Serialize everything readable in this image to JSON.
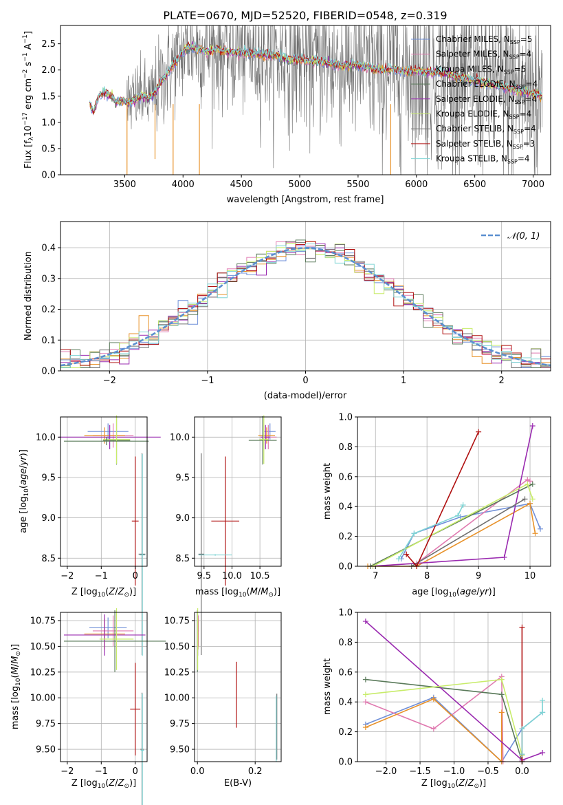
{
  "figure": {
    "title": "PLATE=0670, MJD=52520, FIBERID=0548, z=0.319"
  },
  "colors": {
    "chabrier_miles": "#6f8fd8",
    "salpeter_miles": "#e07ab0",
    "kroupa_miles": "#e8922a",
    "chabrier_elodie": "#5a7a5a",
    "salpeter_elodie": "#9a2ab0",
    "kroupa_elodie": "#c8ec6a",
    "chabrier_stelib": "#707070",
    "salpeter_stelib": "#b01010",
    "kroupa_stelib": "#7fd4d4",
    "gauss": "#5b8fd0",
    "grid": "#b0b0b0"
  },
  "chart_data": [
    {
      "id": "spectrum",
      "type": "line",
      "title": "PLATE=0670, MJD=52520, FIBERID=0548, z=0.319",
      "xlabel": "wavelength [Angstrom, rest frame]",
      "ylabel": "Flux [fλ10⁻¹⁷ erg cm⁻² s⁻¹ A⁻¹]",
      "xlim": [
        2950,
        7150
      ],
      "ylim": [
        0,
        2.85
      ],
      "xticks": [
        3500,
        4000,
        4500,
        5000,
        5500,
        6000,
        6500,
        7000
      ],
      "yticks": [
        0.0,
        0.5,
        1.0,
        1.5,
        2.0,
        2.5
      ],
      "grid": false,
      "legend": "top-right",
      "continuum": {
        "x": [
          3200,
          3230,
          3280,
          3330,
          3380,
          3430,
          3480,
          3530,
          3580,
          3650,
          3700,
          3760,
          3800,
          3850,
          3900,
          3950,
          4000,
          4050,
          4100,
          4150,
          4200,
          4300,
          4400,
          4500,
          4600,
          4700,
          4800,
          4900,
          5000,
          5100,
          5200,
          5300,
          5400,
          5500,
          5600,
          5700,
          5800,
          5900,
          6000,
          6100,
          6200,
          6300,
          6400,
          6500,
          6600,
          6700,
          6800,
          6900,
          7000,
          7080
        ],
        "y": [
          1.37,
          1.2,
          1.5,
          1.58,
          1.5,
          1.4,
          1.42,
          1.36,
          1.43,
          1.52,
          1.45,
          1.55,
          1.72,
          1.9,
          2.05,
          2.2,
          2.35,
          2.45,
          2.43,
          2.4,
          2.35,
          2.4,
          2.35,
          2.35,
          2.3,
          2.3,
          2.28,
          2.2,
          2.2,
          2.18,
          2.15,
          2.1,
          2.1,
          2.1,
          2.05,
          2.0,
          2.02,
          1.98,
          1.98,
          1.95,
          1.95,
          1.9,
          1.85,
          1.8,
          1.75,
          1.7,
          1.65,
          1.6,
          1.55,
          1.5
        ]
      },
      "legend_entries": [
        {
          "label": "Chabrier MILES, N",
          "sub": "SSP",
          "value": "=5",
          "color_key": "chabrier_miles"
        },
        {
          "label": "Salpeter MILES, N",
          "sub": "SSP",
          "value": "=4",
          "color_key": "salpeter_miles"
        },
        {
          "label": "Kroupa MILES, N",
          "sub": "SSP",
          "value": "=5",
          "color_key": "kroupa_miles"
        },
        {
          "label": "Chabrier ELODIE, N",
          "sub": "SSP",
          "value": "=4",
          "color_key": "chabrier_elodie"
        },
        {
          "label": "Salpeter ELODIE, N",
          "sub": "SSP",
          "value": "=4",
          "color_key": "salpeter_elodie"
        },
        {
          "label": "Kroupa ELODIE, N",
          "sub": "SSP",
          "value": "=4",
          "color_key": "kroupa_elodie"
        },
        {
          "label": "Chabrier STELIB, N",
          "sub": "SSP",
          "value": "=4",
          "color_key": "chabrier_stelib"
        },
        {
          "label": "Salpeter STELIB, N",
          "sub": "SSP",
          "value": "=3",
          "color_key": "salpeter_stelib"
        },
        {
          "label": "Kroupa STELIB, N",
          "sub": "SSP",
          "value": "=4",
          "color_key": "kroupa_stelib"
        }
      ]
    },
    {
      "id": "residuals",
      "type": "line",
      "xlabel": "(data-model)/error",
      "ylabel": "Normed distribution",
      "xlim": [
        -2.5,
        2.5
      ],
      "ylim": [
        0,
        0.485
      ],
      "xticks": [
        -2,
        -1,
        0,
        1,
        2
      ],
      "yticks": [
        0.0,
        0.1,
        0.2,
        0.3,
        0.4
      ],
      "grid": true,
      "legend": "top-right",
      "legend_label": "N(0, 1)",
      "bins": {
        "start": -2.5,
        "width": 0.1
      }
    },
    {
      "id": "age-vs-Z",
      "type": "scatter",
      "xlabel": "Z [log10(Z/Z⊙)]",
      "ylabel": "age  [log10(age/yr)]",
      "xlim": [
        -2.2,
        0.35
      ],
      "ylim": [
        8.4,
        10.25
      ],
      "xticks": [
        -2,
        -1,
        0
      ],
      "yticks": [
        8.5,
        9.0,
        9.5,
        10.0
      ],
      "grid": true,
      "points": [
        {
          "x": -0.8,
          "y": 10.07,
          "xerr": 0.6,
          "yerr": 0.1,
          "color_key": "chabrier_miles"
        },
        {
          "x": -0.65,
          "y": 10.02,
          "xerr": 0.6,
          "yerr": 0.15,
          "color_key": "salpeter_miles"
        },
        {
          "x": -0.9,
          "y": 10.02,
          "xerr": 0.6,
          "yerr": 0.1,
          "color_key": "kroupa_miles"
        },
        {
          "x": -0.55,
          "y": 9.96,
          "xerr": 0.4,
          "yerr": 0.3,
          "color_key": "chabrier_elodie"
        },
        {
          "x": -0.75,
          "y": 10.0,
          "xerr": 1.5,
          "yerr": 0.15,
          "color_key": "salpeter_elodie"
        },
        {
          "x": -0.55,
          "y": 9.97,
          "xerr": 0.4,
          "yerr": 0.3,
          "color_key": "kroupa_elodie"
        },
        {
          "x": 0.0,
          "y": 8.96,
          "xerr": 0.1,
          "yerr": 0.8,
          "color_key": "salpeter_stelib"
        },
        {
          "x": 0.2,
          "y": 8.55,
          "xerr": 0.1,
          "yerr": 1.25,
          "color_key": "chabrier_stelib"
        },
        {
          "x": 0.21,
          "y": 8.54,
          "xerr": 0.08,
          "yerr": 1.25,
          "color_key": "kroupa_stelib"
        },
        {
          "x": -0.85,
          "y": 9.95,
          "xerr": 1.25,
          "yerr": 0.05,
          "color_key": "chabrier_elodie"
        }
      ]
    },
    {
      "id": "age-vs-mass",
      "type": "scatter",
      "xlabel": "mass [log10(M/M⊙)]",
      "xlim": [
        9.33,
        10.88
      ],
      "ylim": [
        8.4,
        10.25
      ],
      "xticks": [
        9.5,
        10.0,
        10.5
      ],
      "yticks": [
        8.5,
        9.0,
        9.5,
        10.0
      ],
      "grid": true,
      "points": [
        {
          "x": 10.68,
          "y": 10.07,
          "xerr": 0.1,
          "yerr": 0.1,
          "color_key": "chabrier_miles"
        },
        {
          "x": 10.65,
          "y": 10.0,
          "xerr": 0.15,
          "yerr": 0.15,
          "color_key": "salpeter_miles"
        },
        {
          "x": 10.62,
          "y": 10.02,
          "xerr": 0.15,
          "yerr": 0.1,
          "color_key": "kroupa_miles"
        },
        {
          "x": 10.55,
          "y": 9.96,
          "xerr": 0.25,
          "yerr": 0.3,
          "color_key": "chabrier_elodie"
        },
        {
          "x": 10.6,
          "y": 10.0,
          "xerr": 0.08,
          "yerr": 0.15,
          "color_key": "salpeter_elodie"
        },
        {
          "x": 10.57,
          "y": 9.97,
          "xerr": 0.08,
          "yerr": 0.3,
          "color_key": "kroupa_elodie"
        },
        {
          "x": 9.88,
          "y": 8.96,
          "xerr": 0.25,
          "yerr": 0.8,
          "color_key": "salpeter_stelib"
        },
        {
          "x": 9.45,
          "y": 8.55,
          "xerr": 0.05,
          "yerr": 1.25,
          "color_key": "chabrier_stelib"
        },
        {
          "x": 9.7,
          "y": 8.54,
          "xerr": 0.3,
          "yerr": 0.01,
          "color_key": "kroupa_stelib"
        }
      ]
    },
    {
      "id": "mass-weight-vs-age",
      "type": "line",
      "xlabel": "age  [log10(age/yr)]",
      "ylabel": "mass weight",
      "xlim": [
        6.65,
        10.4
      ],
      "ylim": [
        0,
        1.0
      ],
      "xticks": [
        7,
        8,
        9,
        10
      ],
      "yticks": [
        0.0,
        0.2,
        0.4,
        0.6,
        0.8,
        1.0
      ],
      "grid": true,
      "series": [
        {
          "color_key": "chabrier_miles",
          "x": [
            7.5,
            7.75,
            8.65,
            10.0,
            10.2
          ],
          "y": [
            0.05,
            0.22,
            0.33,
            0.42,
            0.25
          ]
        },
        {
          "color_key": "salpeter_miles",
          "x": [
            6.9,
            7.8,
            9.95,
            10.0
          ],
          "y": [
            0.0,
            0.02,
            0.58,
            0.57
          ]
        },
        {
          "color_key": "kroupa_miles",
          "x": [
            6.85,
            7.8,
            10.0,
            10.1
          ],
          "y": [
            0.0,
            0.0,
            0.42,
            0.22
          ]
        },
        {
          "color_key": "chabrier_elodie",
          "x": [
            6.9,
            10.05
          ],
          "y": [
            0.0,
            0.55
          ]
        },
        {
          "color_key": "salpeter_elodie",
          "x": [
            6.95,
            9.5,
            10.05
          ],
          "y": [
            0.0,
            0.06,
            0.94
          ]
        },
        {
          "color_key": "kroupa_elodie",
          "x": [
            6.95,
            9.95,
            10.05
          ],
          "y": [
            0.0,
            0.55,
            0.45
          ]
        },
        {
          "color_key": "chabrier_stelib",
          "x": [
            7.7,
            9.9
          ],
          "y": [
            0.0,
            0.45
          ]
        },
        {
          "color_key": "salpeter_stelib",
          "x": [
            7.6,
            7.8,
            9.0
          ],
          "y": [
            0.08,
            0.0,
            0.9
          ]
        },
        {
          "color_key": "kroupa_stelib",
          "x": [
            7.45,
            7.75,
            8.6,
            8.7
          ],
          "y": [
            0.05,
            0.22,
            0.34,
            0.41
          ]
        }
      ]
    },
    {
      "id": "mass-vs-Z",
      "type": "scatter",
      "xlabel": "Z [log10(Z/Z⊙)]",
      "ylabel": "mass [log10(M/M⊙)]",
      "xlim": [
        -2.2,
        0.35
      ],
      "ylim": [
        9.38,
        10.83
      ],
      "xticks": [
        -2,
        -1,
        0
      ],
      "yticks": [
        9.5,
        9.75,
        10.0,
        10.25,
        10.5,
        10.75
      ],
      "grid": true,
      "points": [
        {
          "x": -0.8,
          "y": 10.68,
          "xerr": 0.55,
          "yerr": 0.1,
          "color_key": "chabrier_miles"
        },
        {
          "x": -0.65,
          "y": 10.65,
          "xerr": 0.6,
          "yerr": 0.15,
          "color_key": "salpeter_miles"
        },
        {
          "x": -0.9,
          "y": 10.62,
          "xerr": 0.6,
          "yerr": 0.15,
          "color_key": "kroupa_miles"
        },
        {
          "x": -0.6,
          "y": 10.55,
          "xerr": 1.5,
          "yerr": 0.3,
          "color_key": "chabrier_elodie"
        },
        {
          "x": -0.9,
          "y": 10.61,
          "xerr": 1.2,
          "yerr": 0.2,
          "color_key": "salpeter_elodie"
        },
        {
          "x": -0.55,
          "y": 10.57,
          "xerr": 0.5,
          "yerr": 0.3,
          "color_key": "kroupa_elodie"
        },
        {
          "x": 0.0,
          "y": 9.89,
          "xerr": 0.15,
          "yerr": 0.45,
          "color_key": "salpeter_stelib"
        },
        {
          "x": 0.2,
          "y": 9.5,
          "xerr": 0.05,
          "yerr": 0.55,
          "color_key": "chabrier_stelib"
        },
        {
          "x": 0.21,
          "y": 9.49,
          "xerr": 0.05,
          "yerr": 0.55,
          "color_key": "kroupa_stelib"
        }
      ]
    },
    {
      "id": "mass-vs-EBV",
      "type": "scatter",
      "xlabel": "E(B-V)",
      "xlim": [
        -0.01,
        0.29
      ],
      "ylim": [
        9.38,
        10.83
      ],
      "xticks": [
        0.0,
        0.2
      ],
      "yticks": [
        9.5,
        9.75,
        10.0,
        10.25,
        10.5,
        10.75
      ],
      "grid": true,
      "points": [
        {
          "x": 0.002,
          "y": 10.68,
          "xerr": 0.002,
          "yerr": 0.1,
          "color_key": "chabrier_miles"
        },
        {
          "x": 0.003,
          "y": 10.65,
          "xerr": 0.002,
          "yerr": 0.15,
          "color_key": "salpeter_miles"
        },
        {
          "x": 0.002,
          "y": 10.62,
          "xerr": 0.002,
          "yerr": 0.15,
          "color_key": "kroupa_miles"
        },
        {
          "x": 0.0,
          "y": 10.55,
          "xerr": 0.001,
          "yerr": 0.3,
          "color_key": "chabrier_elodie"
        },
        {
          "x": 0.001,
          "y": 10.61,
          "xerr": 0.001,
          "yerr": 0.2,
          "color_key": "salpeter_elodie"
        },
        {
          "x": 0.001,
          "y": 10.57,
          "xerr": 0.001,
          "yerr": 0.3,
          "color_key": "kroupa_elodie"
        },
        {
          "x": 0.135,
          "y": 10.03,
          "xerr": 0.0,
          "yerr": 0.32,
          "color_key": "salpeter_stelib"
        },
        {
          "x": 0.275,
          "y": 9.72,
          "xerr": 0.0,
          "yerr": 0.32,
          "color_key": "chabrier_stelib"
        },
        {
          "x": 0.273,
          "y": 9.7,
          "xerr": 0.001,
          "yerr": 0.32,
          "color_key": "kroupa_stelib"
        }
      ]
    },
    {
      "id": "mass-weight-vs-Z",
      "type": "line",
      "xlabel": "Z [log10(Z/Z⊙)]",
      "ylabel": "mass weight",
      "xlim": [
        -2.42,
        0.42
      ],
      "ylim": [
        0,
        1.0
      ],
      "xticks": [
        -2.0,
        -1.5,
        -1.0,
        -0.5,
        0.0
      ],
      "yticks": [
        0.0,
        0.2,
        0.4,
        0.6,
        0.8,
        1.0
      ],
      "grid": true,
      "series": [
        {
          "color_key": "chabrier_miles",
          "x": [
            -2.3,
            -1.3,
            -0.3,
            0.0,
            0.3
          ],
          "y": [
            0.25,
            0.43,
            0.0,
            0.22,
            0.33
          ]
        },
        {
          "color_key": "salpeter_miles",
          "x": [
            -2.3,
            -1.3,
            -0.3,
            -0.28
          ],
          "y": [
            0.4,
            0.22,
            0.57,
            0.0
          ]
        },
        {
          "color_key": "kroupa_miles",
          "x": [
            -2.3,
            -1.3,
            -0.3,
            -0.3
          ],
          "y": [
            0.23,
            0.42,
            0.0,
            0.33
          ]
        },
        {
          "color_key": "chabrier_elodie",
          "x": [
            -2.3,
            -0.3,
            0.0
          ],
          "y": [
            0.55,
            0.45,
            0.0
          ]
        },
        {
          "color_key": "salpeter_elodie",
          "x": [
            -2.3,
            0.0,
            0.3
          ],
          "y": [
            0.94,
            0.01,
            0.06
          ]
        },
        {
          "color_key": "kroupa_elodie",
          "x": [
            -2.3,
            -0.3,
            0.0
          ],
          "y": [
            0.45,
            0.55,
            0.04
          ]
        },
        {
          "color_key": "chabrier_stelib",
          "x": [
            0.0,
            0.0
          ],
          "y": [
            0.0,
            0.05
          ]
        },
        {
          "color_key": "salpeter_stelib",
          "x": [
            0.0,
            0.0
          ],
          "y": [
            0.9,
            0.0
          ]
        },
        {
          "color_key": "kroupa_stelib",
          "x": [
            0.0,
            0.0,
            0.3,
            0.3
          ],
          "y": [
            0.05,
            0.22,
            0.33,
            0.41
          ]
        }
      ]
    }
  ]
}
